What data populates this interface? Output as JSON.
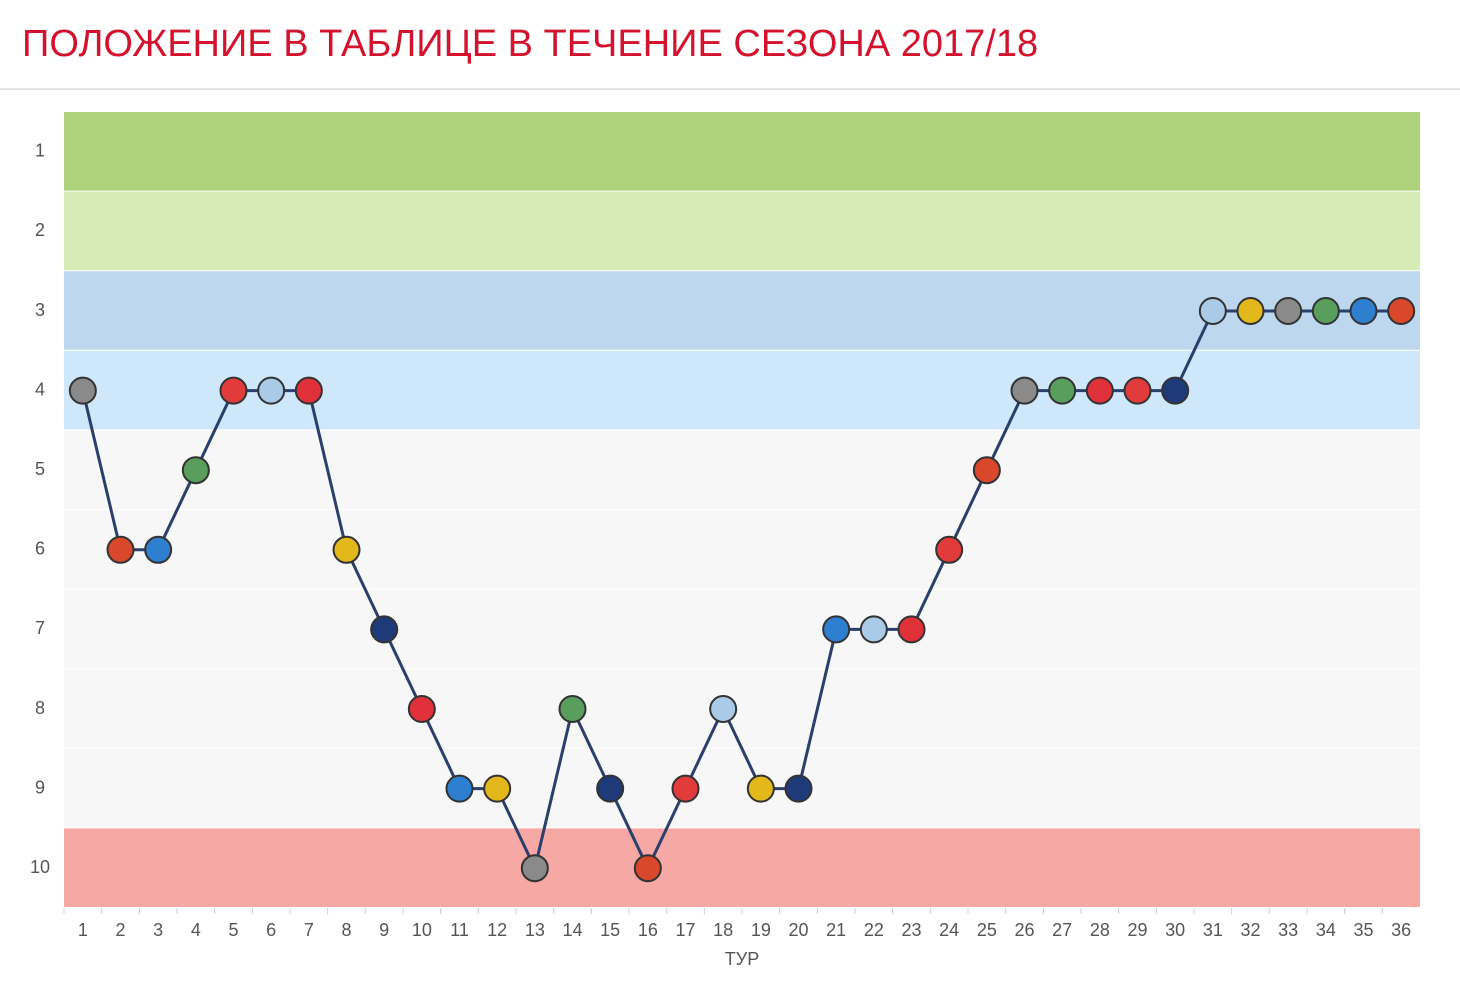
{
  "chart_data": {
    "type": "line",
    "title": "ПОЛОЖЕНИЕ В ТАБЛИЦЕ В ТЕЧЕНИЕ СЕЗОНА 2017/18",
    "x_label": "ТУР",
    "categories": [
      "1",
      "2",
      "3",
      "4",
      "5",
      "6",
      "7",
      "8",
      "9",
      "10",
      "11",
      "12",
      "13",
      "14",
      "15",
      "16",
      "17",
      "18",
      "19",
      "20",
      "21",
      "22",
      "23",
      "24",
      "25",
      "26",
      "27",
      "28",
      "29",
      "30",
      "31",
      "32",
      "33",
      "34",
      "35",
      "36"
    ],
    "values": [
      4,
      6,
      6,
      5,
      4,
      4,
      4,
      6,
      7,
      8,
      9,
      9,
      10,
      8,
      9,
      10,
      9,
      8,
      9,
      9,
      7,
      7,
      7,
      6,
      5,
      4,
      4,
      4,
      4,
      4,
      3,
      3,
      3,
      3,
      3,
      3
    ],
    "color": "#2b3f6c",
    "marker_colors": [
      "#8a8a8a",
      "#d9482b",
      "#2f7fd0",
      "#5a9e5e",
      "#e23b3b",
      "#a9cbe8",
      "#e0313b",
      "#e2b81a",
      "#1f3a78",
      "#e0313b",
      "#2f7fd0",
      "#e2b81a",
      "#8a8a8a",
      "#5a9e5e",
      "#1f3a78",
      "#d9482b",
      "#e23b3b",
      "#a9cbe8",
      "#e2b81a",
      "#1f3a78",
      "#2f7fd0",
      "#a9cbe8",
      "#e0313b",
      "#e23b3b",
      "#d9482b",
      "#8a8a8a",
      "#5a9e5e",
      "#e0313b",
      "#e23b3b",
      "#1f3a78",
      "#a9cbe8",
      "#e2b81a",
      "#8a8a8a",
      "#5a9e5e",
      "#2f7fd0",
      "#d9482b"
    ],
    "ylim": [
      10.5,
      0.5
    ],
    "yticks": [
      1,
      2,
      3,
      4,
      5,
      6,
      7,
      8,
      9,
      10
    ],
    "band_colors": [
      "#aed17c",
      "#d6ebb6",
      "#bdd7ee",
      "#cfe7fb",
      "#f7f7f7",
      "#f7f7f7",
      "#f7f7f7",
      "#f7f7f7",
      "#f7f7f7",
      "#f6a8a4"
    ]
  }
}
